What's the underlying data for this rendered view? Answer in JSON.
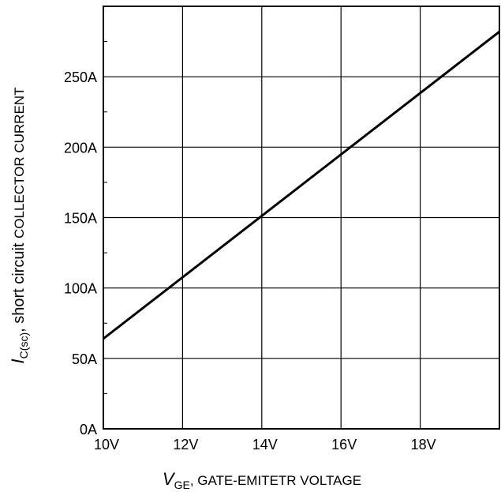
{
  "chart_data": {
    "type": "line",
    "x": [
      10,
      20
    ],
    "series": [
      {
        "values": [
          64,
          282
        ]
      }
    ],
    "xlim": [
      10,
      20
    ],
    "ylim": [
      0,
      300
    ],
    "x_ticks": [
      10,
      12,
      14,
      16,
      18
    ],
    "y_ticks": [
      0,
      50,
      100,
      150,
      200,
      250
    ],
    "x_tick_labels": [
      "10V",
      "12V",
      "14V",
      "16V",
      "18V"
    ],
    "y_tick_labels": [
      "0A",
      "50A",
      "100A",
      "150A",
      "200A",
      "250A"
    ],
    "xlabel": {
      "symbol": "V",
      "subscript": "GE",
      "text": ", GATE-EMITETR VOLTAGE"
    },
    "ylabel": {
      "symbol": "I",
      "subscript": "C(sc)",
      "text_main": ", short circuit ",
      "text_small": "COLLECTOR CURRENT"
    },
    "grid": true,
    "line_color": "#000000",
    "grid_color": "#000000"
  }
}
